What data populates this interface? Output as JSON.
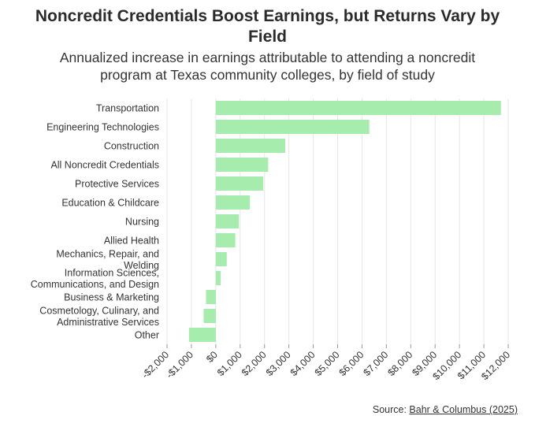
{
  "header": {
    "title_line1": "Noncredit Credentials Boost Earnings, but Returns Vary by",
    "title_line2": "Field",
    "subtitle_line1": "Annualized increase in earnings attributable to attending a noncredit",
    "subtitle_line2": "program at Texas community colleges, by field of study"
  },
  "source": {
    "prefix": "Source: ",
    "link": "Bahr & Columbus (2025)"
  },
  "colors": {
    "bar": "#a6ecad",
    "grid": "#e6e6e6",
    "text": "#333333"
  },
  "chart_data": {
    "type": "bar",
    "orientation": "horizontal",
    "categories": [
      [
        "Transportation"
      ],
      [
        "Engineering Technologies"
      ],
      [
        "Construction"
      ],
      [
        "All Noncredit Credentials"
      ],
      [
        "Protective Services"
      ],
      [
        "Education & Childcare"
      ],
      [
        "Nursing"
      ],
      [
        "Allied Health"
      ],
      [
        "Mechanics, Repair, and",
        "Welding"
      ],
      [
        "Information Sciences,",
        "Communications, and Design"
      ],
      [
        "Business & Marketing"
      ],
      [
        "Cosmetology, Culinary, and",
        "Administrative Services"
      ],
      [
        "Other"
      ]
    ],
    "values": [
      11700,
      6300,
      2850,
      2150,
      1950,
      1400,
      950,
      800,
      450,
      200,
      -400,
      -500,
      -1100
    ],
    "xlim": [
      -2000,
      12000
    ],
    "xticks": [
      -2000,
      -1000,
      0,
      1000,
      2000,
      3000,
      4000,
      5000,
      6000,
      7000,
      8000,
      9000,
      10000,
      11000,
      12000
    ],
    "xtick_labels": [
      "-$2,000",
      "-$1,000",
      "$0",
      "$1,000",
      "$2,000",
      "$3,000",
      "$4,000",
      "$5,000",
      "$6,000",
      "$7,000",
      "$8,000",
      "$9,000",
      "$10,000",
      "$11,000",
      "$12,000"
    ],
    "grid": true,
    "legend": "none",
    "xlabel": "",
    "ylabel": ""
  }
}
